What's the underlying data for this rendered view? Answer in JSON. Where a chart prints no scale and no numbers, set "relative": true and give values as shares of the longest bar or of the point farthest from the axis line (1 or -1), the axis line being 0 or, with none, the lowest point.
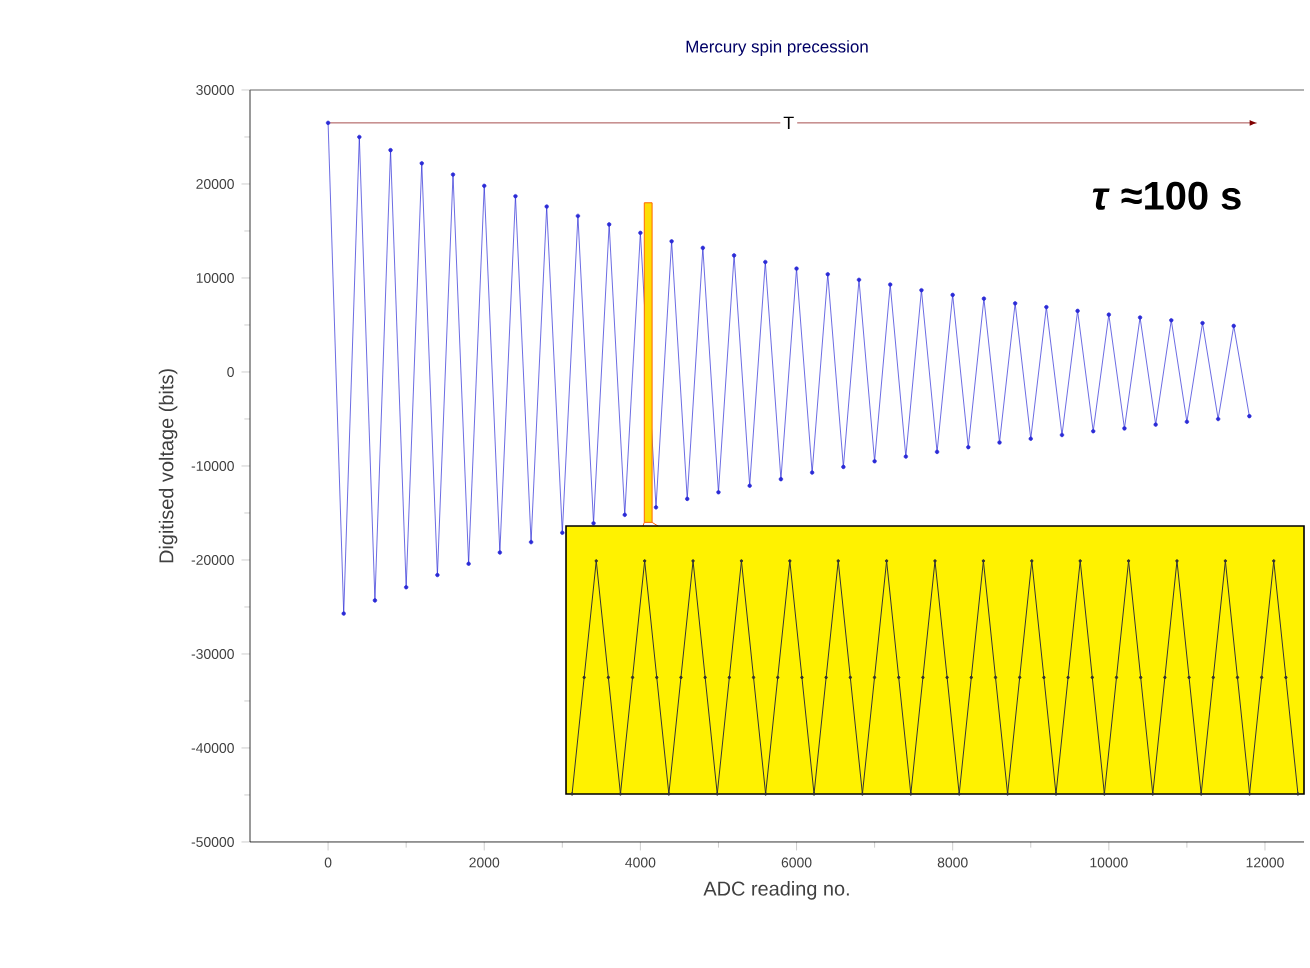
{
  "chart_data": [
    {
      "type": "line",
      "title": "Mercury spin precession",
      "xlabel": "ADC reading no.",
      "ylabel": "Digitised voltage (bits)",
      "x": [
        0,
        200,
        400,
        600,
        800,
        1000,
        1200,
        1400,
        1600,
        1800,
        2000,
        2200,
        2400,
        2600,
        2800,
        3000,
        3200,
        3400,
        3600,
        3800,
        4000,
        4200,
        4400,
        4600,
        4800,
        5000,
        5200,
        5400,
        5600,
        5800,
        6000,
        6200,
        6400,
        6600,
        6800,
        7000,
        7200,
        7400,
        7600,
        7800,
        8000,
        8200,
        8400,
        8600,
        8800,
        9000,
        9200,
        9400,
        9600,
        9800,
        10000,
        10200,
        10400,
        10600,
        10800,
        11000,
        11200,
        11400,
        11600,
        11800
      ],
      "series": [
        {
          "color": "#2b2bd6",
          "values": [
            26500,
            -25700,
            25000,
            -24300,
            23600,
            -22900,
            22200,
            -21600,
            21000,
            -20400,
            19800,
            -19200,
            18700,
            -18100,
            17600,
            -17100,
            16600,
            -16100,
            15700,
            -15200,
            14800,
            -14400,
            13900,
            -13500,
            13200,
            -12800,
            12400,
            -12100,
            11700,
            -11400,
            11000,
            -10700,
            10400,
            -10100,
            9800,
            -9500,
            9300,
            -9000,
            8700,
            -8500,
            8200,
            -8000,
            7800,
            -7500,
            7300,
            -7100,
            6900,
            -6700,
            6500,
            -6300,
            6100,
            -6000,
            5800,
            -5600,
            5500,
            -5300,
            5200,
            -5000,
            4900,
            -4700
          ]
        },
        {
          "type": "line",
          "color": "#800000",
          "marker": "none",
          "x": [
            0,
            11800
          ],
          "values": [
            26500,
            26500
          ]
        }
      ],
      "marker": "circle",
      "xlim": [
        -1000,
        12500
      ],
      "ylim": [
        -50000,
        30000
      ],
      "xticks": [
        0,
        2000,
        4000,
        6000,
        8000,
        10000,
        12000
      ],
      "yticks": [
        -50000,
        -40000,
        -30000,
        -20000,
        -10000,
        0,
        10000,
        20000,
        30000
      ],
      "annotations": [
        "T",
        "*τ* ≈100 s"
      ]
    },
    {
      "type": "line",
      "relative": true,
      "marker": "circle",
      "categories": [
        null,
        null,
        null,
        null,
        null,
        null,
        null,
        null,
        null,
        null,
        null,
        null,
        null,
        null,
        null,
        null,
        null,
        null,
        null,
        null,
        null,
        null,
        null,
        null,
        null,
        null,
        null,
        null,
        null,
        null,
        null,
        null,
        null,
        null,
        null,
        null,
        null,
        null,
        null,
        null,
        null,
        null,
        null,
        null,
        null,
        null,
        null,
        null,
        null,
        null,
        null,
        null,
        null,
        null,
        null,
        null,
        null,
        null,
        null,
        null,
        null
      ],
      "series": [
        {
          "color": "#333333",
          "values": [
            0,
            0.5,
            1,
            0.5,
            0,
            0.5,
            1,
            0.5,
            0,
            0.5,
            1,
            0.5,
            0,
            0.5,
            1,
            0.5,
            0,
            0.5,
            1,
            0.5,
            0,
            0.5,
            1,
            0.5,
            0,
            0.5,
            1,
            0.5,
            0,
            0.5,
            1,
            0.5,
            0,
            0.5,
            1,
            0.5,
            0,
            0.5,
            1,
            0.5,
            0,
            0.5,
            1,
            0.5,
            0,
            0.5,
            1,
            0.5,
            0,
            0.5,
            1,
            0.5,
            0,
            0.5,
            1,
            0.5,
            0,
            0.5,
            1,
            0.5,
            0
          ]
        }
      ]
    }
  ]
}
